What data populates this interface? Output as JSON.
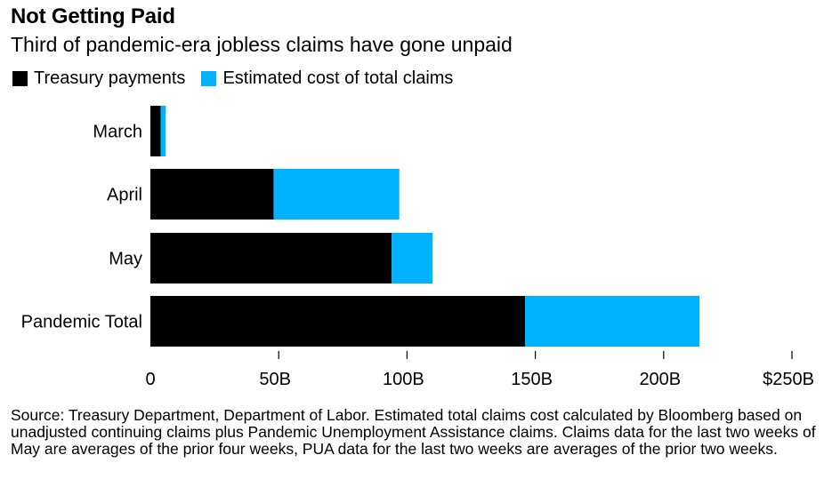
{
  "title": "Not Getting Paid",
  "subtitle": "Third of pandemic-era jobless claims have gone unpaid",
  "legend": {
    "treasury": "Treasury payments",
    "estimated": "Estimated cost of total claims"
  },
  "colors": {
    "treasury": "#000000",
    "estimated": "#00b2ff"
  },
  "chart_data": {
    "type": "bar",
    "orientation": "horizontal",
    "stacked": true,
    "categories": [
      "March",
      "April",
      "May",
      "Pandemic Total"
    ],
    "series": [
      {
        "name": "Treasury payments",
        "values": [
          4,
          48,
          94,
          146
        ]
      },
      {
        "name": "Estimated cost of total claims",
        "values": [
          2,
          49,
          16,
          68
        ]
      }
    ],
    "xlim": [
      0,
      250
    ],
    "xticks": [
      0,
      50,
      100,
      150,
      200,
      250
    ],
    "xtick_labels": [
      "0",
      "50B",
      "100B",
      "150B",
      "200B",
      "$250B"
    ],
    "grid": false,
    "legend_position": "top-left"
  },
  "source": "Source: Treasury Department, Department of Labor. Estimated total claims cost calculated by Bloomberg based on unadjusted continuing claims plus Pandemic Unemployment Assistance claims. Claims data for the last two weeks of May are averages of the prior four weeks, PUA data for the last two weeks are averages of the prior two weeks."
}
